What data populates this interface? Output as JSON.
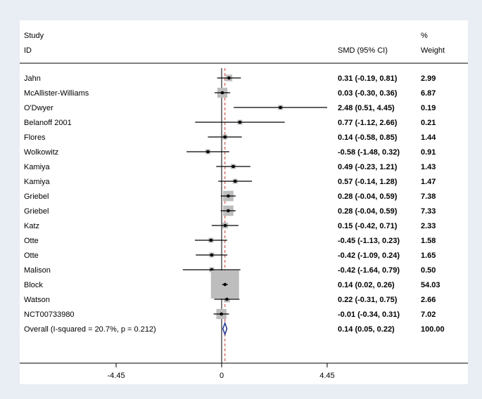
{
  "header": {
    "col1_line1": "Study",
    "col1_line2": "ID",
    "col2": "SMD (95% CI)",
    "col3_line1": "%",
    "col3_line2": "Weight"
  },
  "chart_data": {
    "type": "forest",
    "title": "",
    "xlabel": "",
    "ylabel": "",
    "xlim": [
      -6.2,
      6.2
    ],
    "null_value": 0,
    "x_ticks": [
      -4.45,
      0,
      4.45
    ],
    "x_tick_labels": [
      "-4.45",
      "0",
      "4.45"
    ],
    "colors": {
      "marker_box": "#bdbdbd",
      "ci_line": "#000000",
      "null_line": "#000000",
      "overall_line": "#c0392b",
      "diamond": "#1f2f8f"
    },
    "studies": [
      {
        "name": "Jahn",
        "smd": 0.31,
        "lo": -0.19,
        "hi": 0.81,
        "weight": 2.99,
        "label": "0.31 (-0.19, 0.81)",
        "weight_label": "2.99"
      },
      {
        "name": "McAllister-Williams",
        "smd": 0.03,
        "lo": -0.3,
        "hi": 0.36,
        "weight": 6.87,
        "label": "0.03 (-0.30, 0.36)",
        "weight_label": "6.87"
      },
      {
        "name": "O'Dwyer",
        "smd": 2.48,
        "lo": 0.51,
        "hi": 4.45,
        "weight": 0.19,
        "label": "2.48 (0.51, 4.45)",
        "weight_label": "0.19"
      },
      {
        "name": "Belanoff 2001",
        "smd": 0.77,
        "lo": -1.12,
        "hi": 2.66,
        "weight": 0.21,
        "label": "0.77 (-1.12, 2.66)",
        "weight_label": "0.21"
      },
      {
        "name": "Flores",
        "smd": 0.14,
        "lo": -0.58,
        "hi": 0.85,
        "weight": 1.44,
        "label": "0.14 (-0.58, 0.85)",
        "weight_label": "1.44"
      },
      {
        "name": "Wolkowitz",
        "smd": -0.58,
        "lo": -1.48,
        "hi": 0.32,
        "weight": 0.91,
        "label": "-0.58 (-1.48, 0.32)",
        "weight_label": "0.91"
      },
      {
        "name": "Kamiya",
        "smd": 0.49,
        "lo": -0.23,
        "hi": 1.21,
        "weight": 1.43,
        "label": "0.49 (-0.23, 1.21)",
        "weight_label": "1.43"
      },
      {
        "name": "Kamiya",
        "smd": 0.57,
        "lo": -0.14,
        "hi": 1.28,
        "weight": 1.47,
        "label": "0.57 (-0.14, 1.28)",
        "weight_label": "1.47"
      },
      {
        "name": "Griebel",
        "smd": 0.28,
        "lo": -0.04,
        "hi": 0.59,
        "weight": 7.38,
        "label": "0.28 (-0.04, 0.59)",
        "weight_label": "7.38"
      },
      {
        "name": "Griebel",
        "smd": 0.28,
        "lo": -0.04,
        "hi": 0.59,
        "weight": 7.33,
        "label": "0.28 (-0.04, 0.59)",
        "weight_label": "7.33"
      },
      {
        "name": "Katz",
        "smd": 0.15,
        "lo": -0.42,
        "hi": 0.71,
        "weight": 2.33,
        "label": "0.15 (-0.42, 0.71)",
        "weight_label": "2.33"
      },
      {
        "name": "Otte",
        "smd": -0.45,
        "lo": -1.13,
        "hi": 0.23,
        "weight": 1.58,
        "label": "-0.45 (-1.13, 0.23)",
        "weight_label": "1.58"
      },
      {
        "name": "Otte",
        "smd": -0.42,
        "lo": -1.09,
        "hi": 0.24,
        "weight": 1.65,
        "label": "-0.42 (-1.09, 0.24)",
        "weight_label": "1.65"
      },
      {
        "name": "Malison",
        "smd": -0.42,
        "lo": -1.64,
        "hi": 0.79,
        "weight": 0.5,
        "label": "-0.42 (-1.64, 0.79)",
        "weight_label": "0.50"
      },
      {
        "name": "Block",
        "smd": 0.14,
        "lo": 0.02,
        "hi": 0.26,
        "weight": 54.03,
        "label": "0.14 (0.02, 0.26)",
        "weight_label": "54.03"
      },
      {
        "name": "Watson",
        "smd": 0.22,
        "lo": -0.31,
        "hi": 0.75,
        "weight": 2.66,
        "label": "0.22 (-0.31, 0.75)",
        "weight_label": "2.66"
      },
      {
        "name": "NCT00733980",
        "smd": -0.01,
        "lo": -0.34,
        "hi": 0.31,
        "weight": 7.02,
        "label": "-0.01 (-0.34, 0.31)",
        "weight_label": "7.02"
      }
    ],
    "overall": {
      "name": "Overall  (I-squared = 20.7%, p = 0.212)",
      "smd": 0.14,
      "lo": 0.05,
      "hi": 0.22,
      "weight": 100.0,
      "label": "0.14 (0.05, 0.22)",
      "weight_label": "100.00"
    }
  }
}
